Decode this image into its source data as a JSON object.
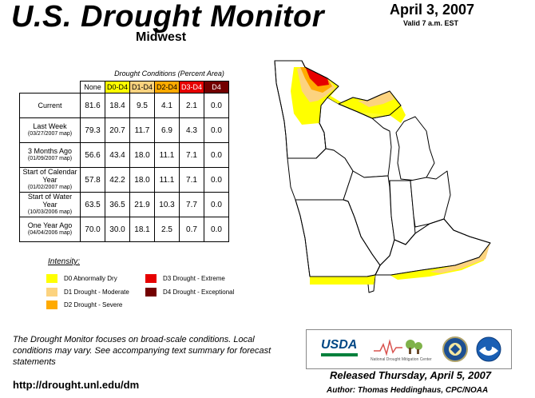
{
  "header": {
    "title": "U.S. Drought Monitor",
    "region": "Midwest",
    "date": "April 3, 2007",
    "valid": "Valid 7 a.m. EST"
  },
  "table": {
    "caption": "Drought Conditions (Percent Area)",
    "columns": [
      "None",
      "D0-D4",
      "D1-D4",
      "D2-D4",
      "D3-D4",
      "D4"
    ],
    "rows": [
      {
        "label": "Current",
        "sub": "",
        "values": [
          "81.6",
          "18.4",
          "9.5",
          "4.1",
          "2.1",
          "0.0"
        ]
      },
      {
        "label": "Last Week",
        "sub": "(03/27/2007 map)",
        "values": [
          "79.3",
          "20.7",
          "11.7",
          "6.9",
          "4.3",
          "0.0"
        ]
      },
      {
        "label": "3 Months Ago",
        "sub": "(01/09/2007 map)",
        "values": [
          "56.6",
          "43.4",
          "18.0",
          "11.1",
          "7.1",
          "0.0"
        ]
      },
      {
        "label": "Start of Calendar Year",
        "sub": "(01/02/2007 map)",
        "values": [
          "57.8",
          "42.2",
          "18.0",
          "11.1",
          "7.1",
          "0.0"
        ]
      },
      {
        "label": "Start of Water Year",
        "sub": "(10/03/2006 map)",
        "values": [
          "63.5",
          "36.5",
          "21.9",
          "10.3",
          "7.7",
          "0.0"
        ]
      },
      {
        "label": "One Year Ago",
        "sub": "(04/04/2006 map)",
        "values": [
          "70.0",
          "30.0",
          "18.1",
          "2.5",
          "0.7",
          "0.0"
        ]
      }
    ]
  },
  "legend": {
    "title": "Intensity:",
    "items": [
      {
        "label": "D0 Abnormally Dry",
        "color": "#ffff00"
      },
      {
        "label": "D1 Drought - Moderate",
        "color": "#fcd37f"
      },
      {
        "label": "D2 Drought - Severe",
        "color": "#ffaa00"
      },
      {
        "label": "D3 Drought - Extreme",
        "color": "#e60000"
      },
      {
        "label": "D4 Drought - Exceptional",
        "color": "#730000"
      }
    ]
  },
  "footer": {
    "note": "The Drought Monitor focuses on broad-scale conditions. Local conditions may vary. See accompanying text summary for forecast statements",
    "url": "http://drought.unl.edu/dm",
    "released": "Released Thursday, April 5, 2007",
    "author": "Author: Thomas Heddinghaus, CPC/NOAA"
  },
  "logos": {
    "usda": "USDA",
    "ndmc": "National Drought Mitigation Center"
  }
}
